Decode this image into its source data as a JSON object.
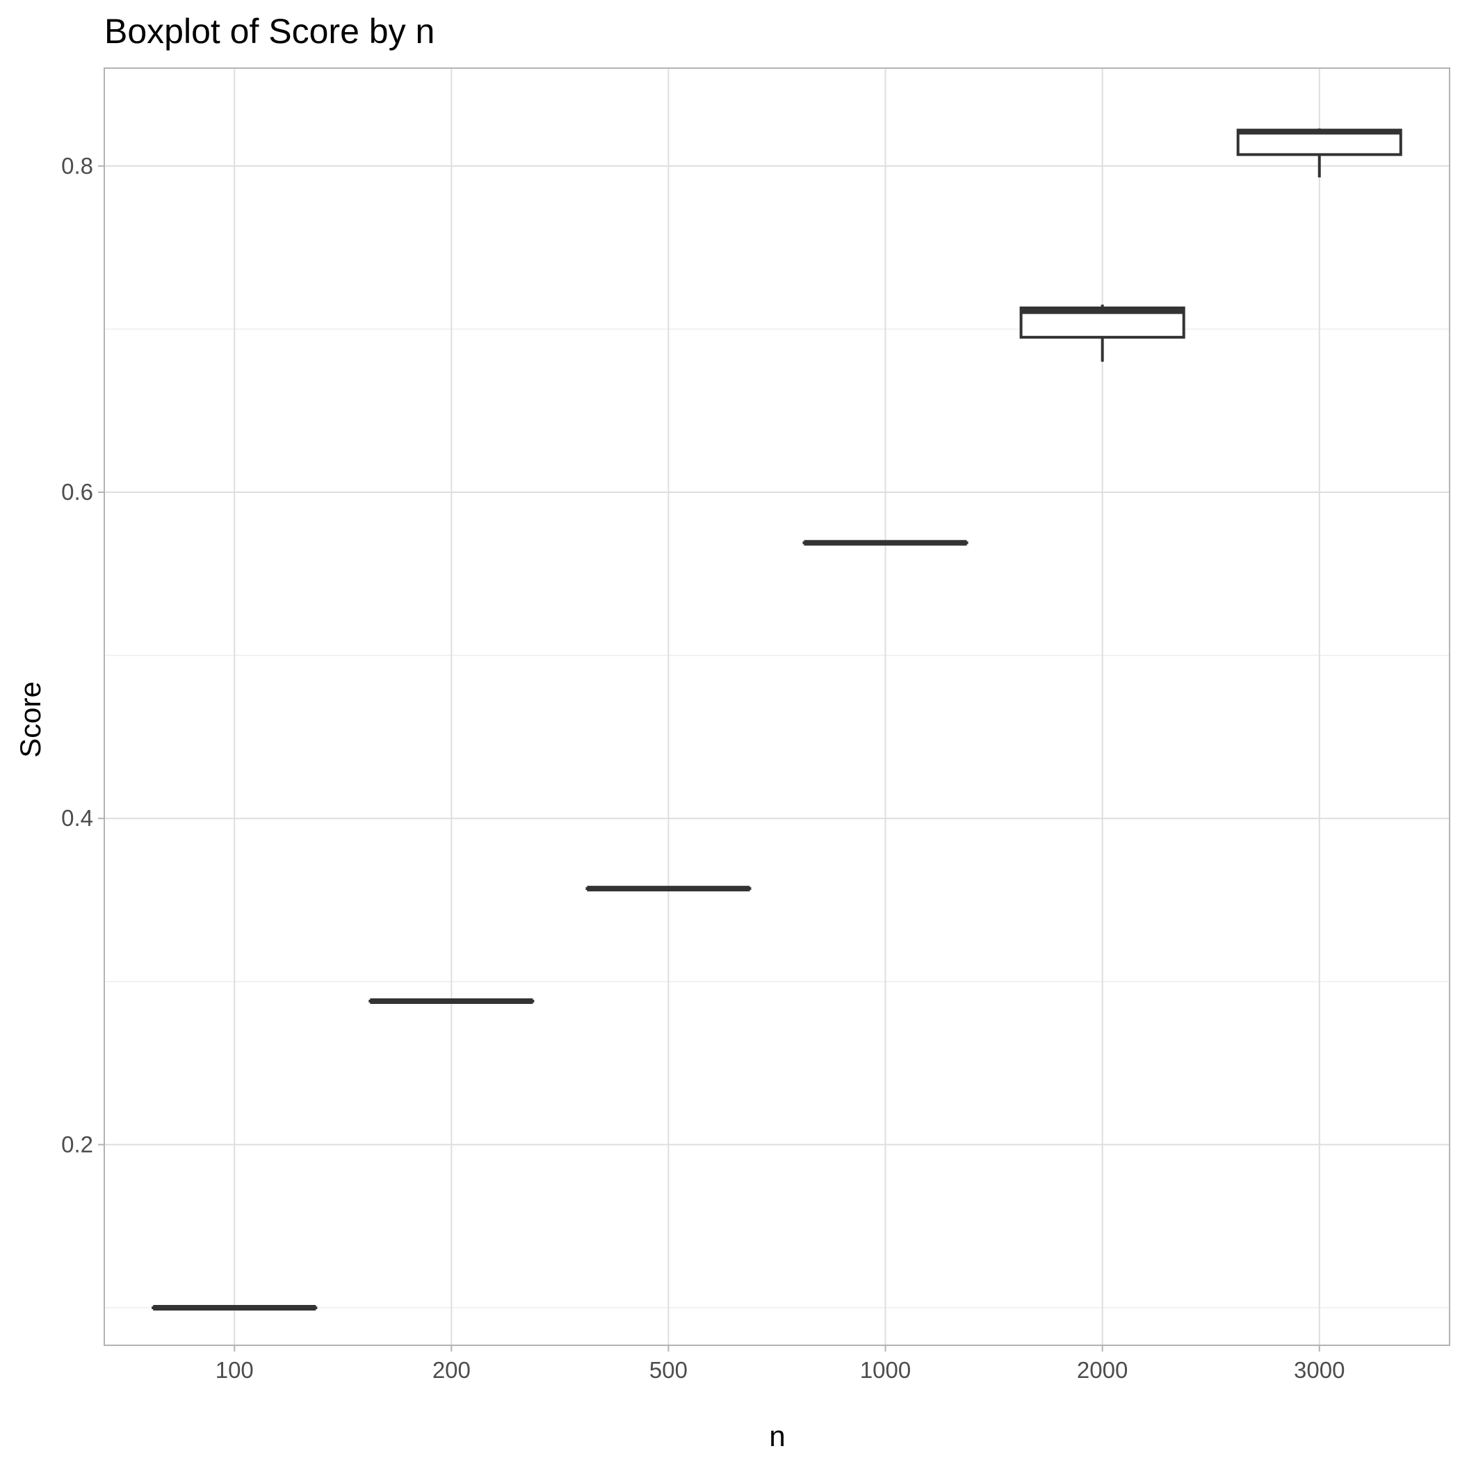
{
  "chart_data": {
    "type": "boxplot",
    "title": "Boxplot of Score by n",
    "xlabel": "n",
    "ylabel": "Score",
    "categories": [
      "100",
      "200",
      "500",
      "1000",
      "2000",
      "3000"
    ],
    "ylim": [
      0.077,
      0.86
    ],
    "yticks": [
      0.2,
      0.4,
      0.6,
      0.8
    ],
    "ytick_labels": [
      "0.2",
      "0.4",
      "0.6",
      "0.8"
    ],
    "grid": true,
    "boxes": [
      {
        "category": "100",
        "min": 0.1,
        "q1": 0.1,
        "median": 0.1,
        "q3": 0.1,
        "max": 0.1
      },
      {
        "category": "200",
        "min": 0.288,
        "q1": 0.288,
        "median": 0.288,
        "q3": 0.288,
        "max": 0.288
      },
      {
        "category": "500",
        "min": 0.357,
        "q1": 0.357,
        "median": 0.357,
        "q3": 0.357,
        "max": 0.357
      },
      {
        "category": "1000",
        "min": 0.569,
        "q1": 0.569,
        "median": 0.569,
        "q3": 0.569,
        "max": 0.569
      },
      {
        "category": "2000",
        "min": 0.68,
        "q1": 0.695,
        "median": 0.711,
        "q3": 0.713,
        "max": 0.715
      },
      {
        "category": "3000",
        "min": 0.793,
        "q1": 0.807,
        "median": 0.821,
        "q3": 0.822,
        "max": 0.823
      }
    ],
    "colors": {
      "background": "#ffffff",
      "panel_border": "#b3b3b3",
      "grid_major": "#dedede",
      "grid_minor": "#ededed",
      "box_line": "#333333",
      "box_fill": "#ffffff",
      "tick_text": "#4d4d4d",
      "title_text": "#000000"
    }
  }
}
